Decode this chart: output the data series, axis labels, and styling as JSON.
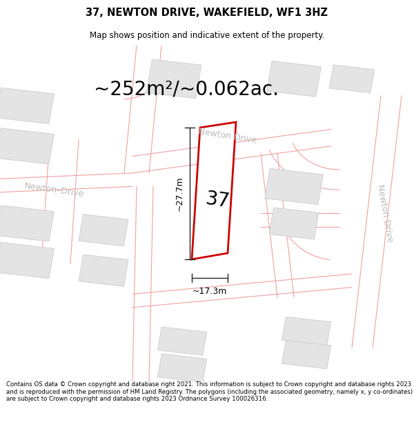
{
  "title_line1": "37, NEWTON DRIVE, WAKEFIELD, WF1 3HZ",
  "title_line2": "Map shows position and indicative extent of the property.",
  "area_text": "~252m²/~0.062ac.",
  "number_label": "37",
  "dim_height": "~27.7m",
  "dim_width": "~17.3m",
  "footer_text": "Contains OS data © Crown copyright and database right 2021. This information is subject to Crown copyright and database rights 2023 and is reproduced with the permission of HM Land Registry. The polygons (including the associated geometry, namely x, y co-ordinates) are subject to Crown copyright and database rights 2023 Ordnance Survey 100026316.",
  "bg_color": "#ffffff",
  "map_bg": "#f8f8f8",
  "road_line_color": "#f0a0a0",
  "building_color": "#e4e4e4",
  "building_edge": "#cccccc",
  "property_color": "#ffffff",
  "property_edge": "#cc0000",
  "street_label_color": "#bbbbbb",
  "dim_line_color": "#222222",
  "title_fontsize": 10.5,
  "subtitle_fontsize": 8.5,
  "area_fontsize": 20,
  "number_fontsize": 20,
  "dim_fontsize": 9,
  "street_fontsize": 9,
  "footer_fontsize": 6.2,
  "road_lw": 0.8
}
